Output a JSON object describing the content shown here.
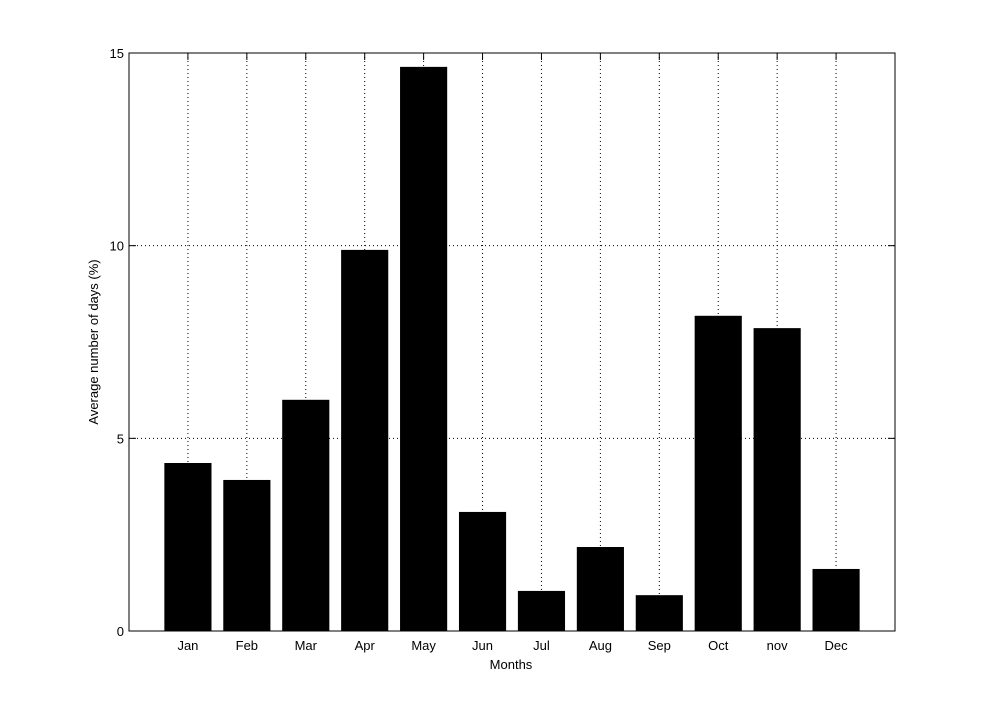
{
  "chart_data": {
    "type": "bar",
    "xlabel": "Months",
    "ylabel": "Average number of days (%)",
    "categories": [
      "Jan",
      "Feb",
      "Mar",
      "Apr",
      "May",
      "Jun",
      "Jul",
      "Aug",
      "Sep",
      "Oct",
      "nov",
      "Dec"
    ],
    "values": [
      4.36,
      3.92,
      6.0,
      9.89,
      14.64,
      3.09,
      1.04,
      2.18,
      0.93,
      8.18,
      7.86,
      1.61
    ],
    "color": "#000000",
    "ylim": [
      0,
      15
    ],
    "yticks": [
      0,
      5,
      10,
      15
    ],
    "grid": true
  }
}
